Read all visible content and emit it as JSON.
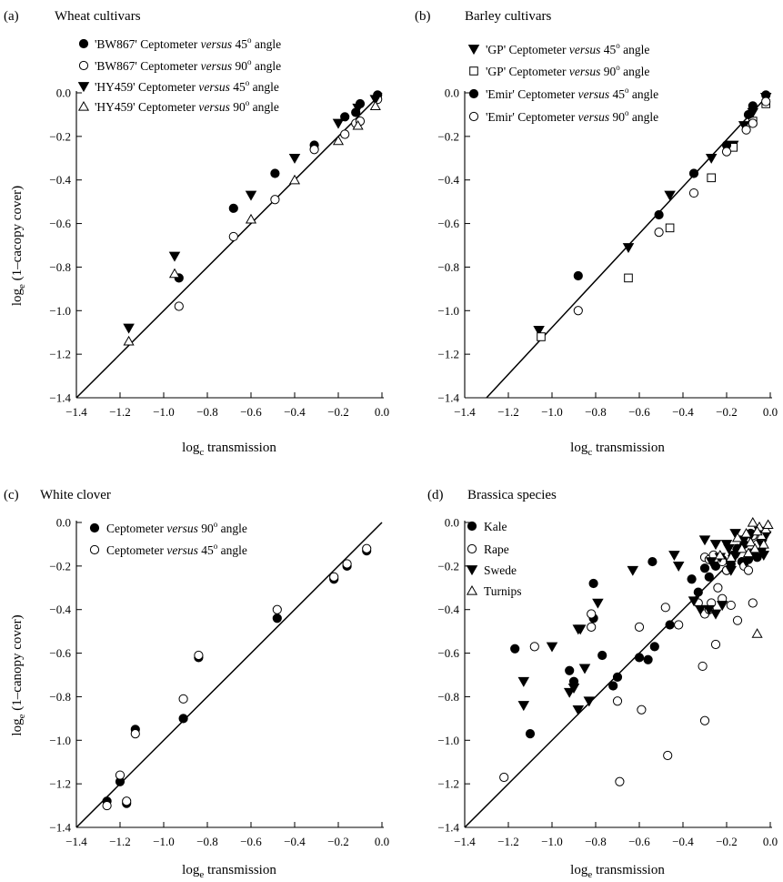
{
  "chart_data": [
    {
      "type": "scatter",
      "panel_label": "(a)",
      "title": "Wheat cultivars",
      "ylabel": "log_e (1-cacopy cover)",
      "xlabel": "log_e transmission",
      "xlim": [
        -1.4,
        0.0
      ],
      "ylim": [
        -1.4,
        0.0
      ],
      "xticks": [
        "-1.4",
        "-1.2",
        "-1.0",
        "-0.8",
        "-0.6",
        "-0.4",
        "-0.2",
        "0.0"
      ],
      "yticks": [
        "0.0",
        "-0.2",
        "-0.4",
        "-0.6",
        "-0.8",
        "-1.0",
        "-1.2",
        "-1.4"
      ],
      "line": [
        [
          -1.4,
          -1.4
        ],
        [
          0.0,
          0.0
        ]
      ],
      "legend_location": "upper-left",
      "series": [
        {
          "name": "'BW867' Ceptometer versus 45° angle",
          "marker": "filled-circle",
          "points": [
            [
              -0.93,
              -0.85
            ],
            [
              -0.68,
              -0.53
            ],
            [
              -0.49,
              -0.37
            ],
            [
              -0.31,
              -0.24
            ],
            [
              -0.17,
              -0.11
            ],
            [
              -0.12,
              -0.09
            ],
            [
              -0.1,
              -0.05
            ],
            [
              -0.02,
              -0.01
            ]
          ]
        },
        {
          "name": "'BW867' Ceptometer versus 90° angle",
          "marker": "open-circle",
          "points": [
            [
              -0.93,
              -0.98
            ],
            [
              -0.68,
              -0.66
            ],
            [
              -0.49,
              -0.49
            ],
            [
              -0.31,
              -0.26
            ],
            [
              -0.17,
              -0.19
            ],
            [
              -0.12,
              -0.14
            ],
            [
              -0.1,
              -0.13
            ],
            [
              -0.02,
              -0.03
            ]
          ]
        },
        {
          "name": "'HY459' Ceptometer versus 45° angle",
          "marker": "filled-triangle-down",
          "points": [
            [
              -1.16,
              -1.08
            ],
            [
              -0.95,
              -0.75
            ],
            [
              -0.6,
              -0.47
            ],
            [
              -0.4,
              -0.3
            ],
            [
              -0.2,
              -0.14
            ],
            [
              -0.11,
              -0.07
            ],
            [
              -0.03,
              -0.03
            ]
          ]
        },
        {
          "name": "'HY459' Ceptometer versus 90° angle",
          "marker": "open-triangle-up",
          "points": [
            [
              -1.16,
              -1.14
            ],
            [
              -0.95,
              -0.83
            ],
            [
              -0.6,
              -0.58
            ],
            [
              -0.4,
              -0.4
            ],
            [
              -0.2,
              -0.22
            ],
            [
              -0.11,
              -0.15
            ],
            [
              -0.03,
              -0.06
            ]
          ]
        }
      ]
    },
    {
      "type": "scatter",
      "panel_label": "(b)",
      "title": "Barley cultivars",
      "ylabel": "",
      "xlabel": "log_c transmission",
      "xlim": [
        -1.4,
        0.0
      ],
      "ylim": [
        -1.4,
        0.0
      ],
      "xticks": [
        "-1.4",
        "-1.2",
        "-1.0",
        "-0.8",
        "-0.6",
        "-0.4",
        "-0.2",
        "0.0"
      ],
      "yticks": [
        "0.0",
        "-0.2",
        "-0.4",
        "-0.6",
        "-0.8",
        "-1.0",
        "-1.2",
        "-1.4"
      ],
      "line": [
        [
          -1.3,
          -1.4
        ],
        [
          0.0,
          0.0
        ]
      ],
      "legend_location": "upper-left",
      "series": [
        {
          "name": "'GP' Ceptometer versus 45° angle",
          "marker": "filled-triangle-down",
          "points": [
            [
              -1.06,
              -1.09
            ],
            [
              -0.65,
              -0.71
            ],
            [
              -0.46,
              -0.47
            ],
            [
              -0.27,
              -0.3
            ],
            [
              -0.17,
              -0.24
            ],
            [
              -0.12,
              -0.15
            ],
            [
              -0.08,
              -0.09
            ],
            [
              -0.02,
              -0.02
            ]
          ]
        },
        {
          "name": "'GP' Ceptometer versus 90° angle",
          "marker": "open-square",
          "points": [
            [
              -1.05,
              -1.12
            ],
            [
              -0.65,
              -0.85
            ],
            [
              -0.46,
              -0.62
            ],
            [
              -0.27,
              -0.39
            ],
            [
              -0.17,
              -0.25
            ],
            [
              -0.08,
              -0.13
            ],
            [
              -0.02,
              -0.05
            ]
          ]
        },
        {
          "name": "'Emir' Ceptometer versus 45° angle",
          "marker": "filled-circle",
          "points": [
            [
              -0.88,
              -0.84
            ],
            [
              -0.51,
              -0.56
            ],
            [
              -0.35,
              -0.37
            ],
            [
              -0.2,
              -0.24
            ],
            [
              -0.1,
              -0.1
            ],
            [
              -0.08,
              -0.06
            ],
            [
              -0.02,
              -0.01
            ]
          ]
        },
        {
          "name": "'Emir' Ceptometer versus 90° angle",
          "marker": "open-circle",
          "points": [
            [
              -0.88,
              -1.0
            ],
            [
              -0.51,
              -0.64
            ],
            [
              -0.35,
              -0.46
            ],
            [
              -0.2,
              -0.27
            ],
            [
              -0.11,
              -0.17
            ],
            [
              -0.08,
              -0.14
            ],
            [
              -0.02,
              -0.04
            ]
          ]
        }
      ]
    },
    {
      "type": "scatter",
      "panel_label": "(c)",
      "title": "White clover",
      "ylabel": "log_e (1-canopy cover)",
      "xlabel": "log_e transmission",
      "xlim": [
        -1.4,
        0.0
      ],
      "ylim": [
        -1.4,
        0.0
      ],
      "xticks": [
        "-1.4",
        "-1.2",
        "-1.0",
        "-0.8",
        "-0.6",
        "-0.4",
        "-0.2",
        "0.0"
      ],
      "yticks": [
        "0.0",
        "-0.2",
        "-0.4",
        "-0.6",
        "-0.8",
        "-1.0",
        "-1.2",
        "-1.4"
      ],
      "line": [
        [
          -1.4,
          -1.4
        ],
        [
          0.0,
          0.0
        ]
      ],
      "legend_location": "upper-left",
      "series": [
        {
          "name": "Ceptometer versus 90° angle",
          "marker": "filled-circle",
          "points": [
            [
              -1.26,
              -1.28
            ],
            [
              -1.2,
              -1.19
            ],
            [
              -1.17,
              -1.29
            ],
            [
              -1.13,
              -0.95
            ],
            [
              -0.91,
              -0.9
            ],
            [
              -0.84,
              -0.62
            ],
            [
              -0.48,
              -0.44
            ],
            [
              -0.22,
              -0.26
            ],
            [
              -0.16,
              -0.2
            ],
            [
              -0.07,
              -0.13
            ]
          ]
        },
        {
          "name": "Ceptometer versus 45° angle",
          "marker": "open-circle",
          "points": [
            [
              -1.26,
              -1.3
            ],
            [
              -1.2,
              -1.16
            ],
            [
              -1.17,
              -1.28
            ],
            [
              -1.13,
              -0.97
            ],
            [
              -0.91,
              -0.81
            ],
            [
              -0.84,
              -0.61
            ],
            [
              -0.48,
              -0.4
            ],
            [
              -0.22,
              -0.25
            ],
            [
              -0.16,
              -0.19
            ],
            [
              -0.07,
              -0.12
            ]
          ]
        }
      ]
    },
    {
      "type": "scatter",
      "panel_label": "(d)",
      "title": "Brassica species",
      "ylabel": "",
      "xlabel": "log_e transmission",
      "xlim": [
        -1.4,
        0.0
      ],
      "ylim": [
        -1.4,
        0.0
      ],
      "xticks": [
        "-1.4",
        "-1.2",
        "-1.0",
        "-0.8",
        "-0.6",
        "-0.4",
        "-0.2",
        "0.0"
      ],
      "yticks": [
        "0.0",
        "-0.2",
        "-0.4",
        "-0.6",
        "-0.8",
        "-1.0",
        "-1.2",
        "-1.4"
      ],
      "line": [
        [
          -1.4,
          -1.4
        ],
        [
          0.0,
          0.0
        ]
      ],
      "legend_location": "upper-left",
      "series": [
        {
          "name": "Kale",
          "marker": "filled-circle",
          "points": [
            [
              -1.17,
              -0.58
            ],
            [
              -1.1,
              -0.97
            ],
            [
              -0.92,
              -0.68
            ],
            [
              -0.9,
              -0.73
            ],
            [
              -0.81,
              -0.28
            ],
            [
              -0.81,
              -0.44
            ],
            [
              -0.77,
              -0.61
            ],
            [
              -0.72,
              -0.75
            ],
            [
              -0.7,
              -0.71
            ],
            [
              -0.6,
              -0.62
            ],
            [
              -0.56,
              -0.63
            ],
            [
              -0.54,
              -0.18
            ],
            [
              -0.53,
              -0.57
            ],
            [
              -0.46,
              -0.47
            ],
            [
              -0.36,
              -0.26
            ],
            [
              -0.33,
              -0.32
            ],
            [
              -0.3,
              -0.21
            ],
            [
              -0.28,
              -0.25
            ],
            [
              -0.25,
              -0.2
            ],
            [
              -0.22,
              -0.17
            ],
            [
              -0.2,
              -0.22
            ],
            [
              -0.17,
              -0.15
            ],
            [
              -0.15,
              -0.12
            ],
            [
              -0.12,
              -0.1
            ],
            [
              -0.1,
              -0.17
            ],
            [
              -0.08,
              -0.14
            ],
            [
              -0.06,
              -0.16
            ],
            [
              -0.05,
              -0.1
            ],
            [
              -0.04,
              -0.12
            ],
            [
              -0.13,
              -0.18
            ],
            [
              -0.18,
              -0.19
            ],
            [
              -0.09,
              -0.05
            ]
          ]
        },
        {
          "name": "Rape",
          "marker": "open-circle",
          "points": [
            [
              -1.22,
              -1.17
            ],
            [
              -1.08,
              -0.57
            ],
            [
              -0.82,
              -0.42
            ],
            [
              -0.82,
              -0.48
            ],
            [
              -0.7,
              -0.82
            ],
            [
              -0.69,
              -1.19
            ],
            [
              -0.6,
              -0.48
            ],
            [
              -0.59,
              -0.86
            ],
            [
              -0.48,
              -0.39
            ],
            [
              -0.47,
              -1.07
            ],
            [
              -0.42,
              -0.47
            ],
            [
              -0.33,
              -0.37
            ],
            [
              -0.31,
              -0.66
            ],
            [
              -0.3,
              -0.91
            ],
            [
              -0.3,
              -0.42
            ],
            [
              -0.28,
              -0.4
            ],
            [
              -0.27,
              -0.37
            ],
            [
              -0.25,
              -0.56
            ],
            [
              -0.24,
              -0.3
            ],
            [
              -0.22,
              -0.35
            ],
            [
              -0.2,
              -0.22
            ],
            [
              -0.18,
              -0.38
            ],
            [
              -0.15,
              -0.45
            ],
            [
              -0.12,
              -0.2
            ],
            [
              -0.1,
              -0.22
            ],
            [
              -0.08,
              -0.37
            ],
            [
              -0.08,
              -0.06
            ],
            [
              -0.06,
              -0.1
            ],
            [
              -0.3,
              -0.16
            ],
            [
              -0.28,
              -0.17
            ],
            [
              -0.26,
              -0.15
            ],
            [
              -0.22,
              -0.18
            ]
          ]
        },
        {
          "name": "Swede",
          "marker": "filled-triangle-down",
          "points": [
            [
              -1.13,
              -0.73
            ],
            [
              -1.13,
              -0.84
            ],
            [
              -1.0,
              -0.57
            ],
            [
              -0.92,
              -0.78
            ],
            [
              -0.9,
              -0.76
            ],
            [
              -0.88,
              -0.86
            ],
            [
              -0.88,
              -0.49
            ],
            [
              -0.87,
              -0.49
            ],
            [
              -0.85,
              -0.67
            ],
            [
              -0.83,
              -0.82
            ],
            [
              -0.79,
              -0.37
            ],
            [
              -0.63,
              -0.22
            ],
            [
              -0.44,
              -0.15
            ],
            [
              -0.42,
              -0.2
            ],
            [
              -0.35,
              -0.36
            ],
            [
              -0.32,
              -0.4
            ],
            [
              -0.28,
              -0.4
            ],
            [
              -0.25,
              -0.42
            ],
            [
              -0.22,
              -0.38
            ],
            [
              -0.2,
              -0.1
            ],
            [
              -0.18,
              -0.22
            ],
            [
              -0.16,
              -0.05
            ],
            [
              -0.14,
              -0.12
            ],
            [
              -0.12,
              -0.08
            ],
            [
              -0.11,
              -0.18
            ],
            [
              -0.09,
              -0.06
            ],
            [
              -0.07,
              -0.14
            ],
            [
              -0.05,
              -0.04
            ],
            [
              -0.04,
              -0.1
            ],
            [
              -0.03,
              -0.15
            ],
            [
              -0.02,
              -0.06
            ],
            [
              -0.15,
              -0.14
            ],
            [
              -0.17,
              -0.17
            ],
            [
              -0.19,
              -0.12
            ],
            [
              -0.23,
              -0.16
            ],
            [
              -0.27,
              -0.18
            ],
            [
              -0.3,
              -0.08
            ],
            [
              -0.25,
              -0.1
            ]
          ]
        },
        {
          "name": "Turnips",
          "marker": "open-triangle-up",
          "points": [
            [
              -0.23,
              -0.15
            ],
            [
              -0.18,
              -0.16
            ],
            [
              -0.15,
              -0.07
            ],
            [
              -0.13,
              -0.12
            ],
            [
              -0.11,
              -0.05
            ],
            [
              -0.09,
              -0.09
            ],
            [
              -0.08,
              0.0
            ],
            [
              -0.07,
              -0.12
            ],
            [
              -0.06,
              -0.51
            ],
            [
              -0.05,
              -0.02
            ],
            [
              -0.04,
              -0.06
            ],
            [
              -0.03,
              -0.1
            ],
            [
              -0.02,
              -0.03
            ],
            [
              -0.01,
              -0.01
            ],
            [
              -0.1,
              -0.14
            ],
            [
              -0.06,
              -0.04
            ]
          ]
        }
      ]
    }
  ]
}
